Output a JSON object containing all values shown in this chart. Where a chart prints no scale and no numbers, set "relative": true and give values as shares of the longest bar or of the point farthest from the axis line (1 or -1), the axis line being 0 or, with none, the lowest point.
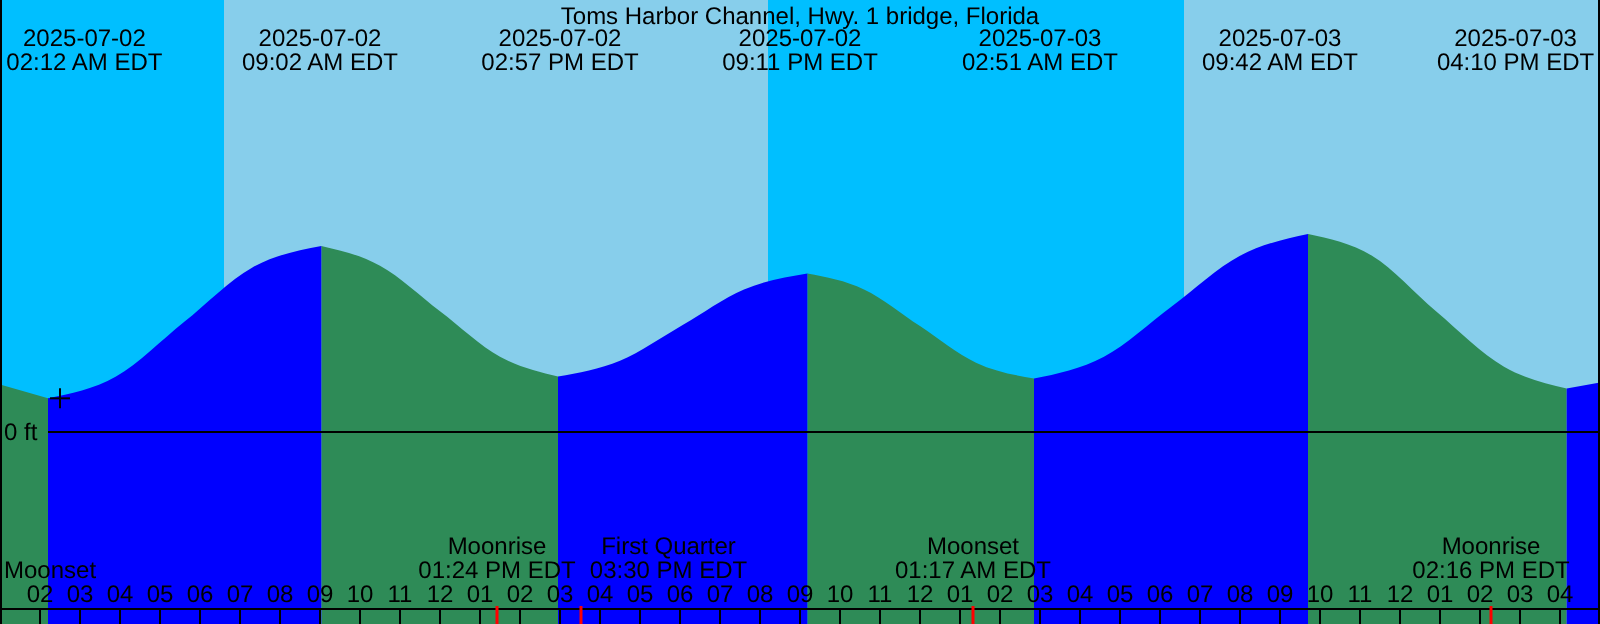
{
  "chart_data": {
    "type": "area",
    "title": "Toms Harbor Channel, Hwy. 1 bridge, Florida",
    "relative": true,
    "xlim": [
      "2025-07-02T01:00",
      "2025-07-03T17:00"
    ],
    "xticks": [
      {
        "value": "2025-07-02T02:00",
        "label": "02"
      },
      {
        "value": "2025-07-02T03:00",
        "label": "03"
      },
      {
        "value": "2025-07-02T04:00",
        "label": "04"
      },
      {
        "value": "2025-07-02T05:00",
        "label": "05"
      },
      {
        "value": "2025-07-02T06:00",
        "label": "06"
      },
      {
        "value": "2025-07-02T07:00",
        "label": "07"
      },
      {
        "value": "2025-07-02T08:00",
        "label": "08"
      },
      {
        "value": "2025-07-02T09:00",
        "label": "09"
      },
      {
        "value": "2025-07-02T10:00",
        "label": "10"
      },
      {
        "value": "2025-07-02T11:00",
        "label": "11"
      },
      {
        "value": "2025-07-02T12:00",
        "label": "12"
      },
      {
        "value": "2025-07-02T13:00",
        "label": "01"
      },
      {
        "value": "2025-07-02T14:00",
        "label": "02"
      },
      {
        "value": "2025-07-02T15:00",
        "label": "03"
      },
      {
        "value": "2025-07-02T16:00",
        "label": "04"
      },
      {
        "value": "2025-07-02T17:00",
        "label": "05"
      },
      {
        "value": "2025-07-02T18:00",
        "label": "06"
      },
      {
        "value": "2025-07-02T19:00",
        "label": "07"
      },
      {
        "value": "2025-07-02T20:00",
        "label": "08"
      },
      {
        "value": "2025-07-02T21:00",
        "label": "09"
      },
      {
        "value": "2025-07-02T22:00",
        "label": "10"
      },
      {
        "value": "2025-07-02T23:00",
        "label": "11"
      },
      {
        "value": "2025-07-03T00:00",
        "label": "12"
      },
      {
        "value": "2025-07-03T01:00",
        "label": "01"
      },
      {
        "value": "2025-07-03T02:00",
        "label": "02"
      },
      {
        "value": "2025-07-03T03:00",
        "label": "03"
      },
      {
        "value": "2025-07-03T04:00",
        "label": "04"
      },
      {
        "value": "2025-07-03T05:00",
        "label": "05"
      },
      {
        "value": "2025-07-03T06:00",
        "label": "06"
      },
      {
        "value": "2025-07-03T07:00",
        "label": "07"
      },
      {
        "value": "2025-07-03T08:00",
        "label": "08"
      },
      {
        "value": "2025-07-03T09:00",
        "label": "09"
      },
      {
        "value": "2025-07-03T10:00",
        "label": "10"
      },
      {
        "value": "2025-07-03T11:00",
        "label": "11"
      },
      {
        "value": "2025-07-03T12:00",
        "label": "12"
      },
      {
        "value": "2025-07-03T13:00",
        "label": "01"
      },
      {
        "value": "2025-07-03T14:00",
        "label": "02"
      },
      {
        "value": "2025-07-03T15:00",
        "label": "03"
      },
      {
        "value": "2025-07-03T16:00",
        "label": "04"
      }
    ],
    "series": [
      {
        "color": "#2e8b57",
        "x": [
          "2025-07-02T01:00",
          "2025-07-02T02:12",
          "2025-07-02T03:54",
          "2025-07-02T09:02",
          "2025-07-02T10:30",
          "2025-07-02T12:00",
          "2025-07-02T13:30",
          "2025-07-02T14:57",
          "2025-07-02T18:00",
          "2025-07-02T21:11",
          "2025-07-02T22:36",
          "2025-07-03T00:00",
          "2025-07-03T01:24",
          "2025-07-03T02:51",
          "2025-07-03T06:00",
          "2025-07-03T09:42",
          "2025-07-03T11:18",
          "2025-07-03T12:54",
          "2025-07-03T14:36",
          "2025-07-03T16:10"
        ],
        "values": [
          0.24,
          0.17,
          null,
          0.94,
          0.84,
          0.61,
          0.38,
          0.28,
          null,
          0.8,
          0.72,
          0.535,
          0.35,
          0.27,
          null,
          1.0,
          0.89,
          0.61,
          0.33,
          0.22
        ]
      },
      {
        "color": "#0000ff",
        "x": [
          "2025-07-02T02:12",
          "2025-07-02T03:54",
          "2025-07-02T05:36",
          "2025-07-02T07:18",
          "2025-07-02T09:02",
          "2025-07-02T12:00",
          "2025-07-02T14:57",
          "2025-07-02T16:30",
          "2025-07-02T18:04",
          "2025-07-02T19:36",
          "2025-07-02T21:11",
          "2025-07-03T00:00",
          "2025-07-03T02:51",
          "2025-07-03T04:36",
          "2025-07-03T06:18",
          "2025-07-03T08:00",
          "2025-07-03T09:42",
          "2025-07-03T13:00",
          "2025-07-03T16:10",
          "2025-07-03T17:00"
        ],
        "values": [
          0.17,
          0.28,
          0.555,
          0.83,
          0.94,
          null,
          0.28,
          0.36,
          0.54,
          0.72,
          0.8,
          null,
          0.27,
          0.38,
          0.635,
          0.89,
          1.0,
          null,
          0.22,
          0.25
        ]
      }
    ],
    "bands": [
      {
        "axis": "x",
        "from": "2025-07-02T01:00",
        "to": "2025-07-02T06:36",
        "color": "#00bfff"
      },
      {
        "axis": "x",
        "from": "2025-07-02T06:36",
        "to": "2025-07-02T20:12",
        "color": "#87ceeb"
      },
      {
        "axis": "x",
        "from": "2025-07-02T20:12",
        "to": "2025-07-03T06:36",
        "color": "#00bfff"
      },
      {
        "axis": "x",
        "from": "2025-07-03T06:36",
        "to": "2025-07-03T17:00",
        "color": "#87ceeb"
      }
    ],
    "ref_lines": [
      {
        "axis": "y",
        "value": 0,
        "label": "0 ft",
        "color": "#000000"
      },
      {
        "axis": "x",
        "value": "2025-07-02T13:24",
        "label": "Moonrise\n01:24 PM EDT",
        "color": "#ff0000"
      },
      {
        "axis": "x",
        "value": "2025-07-02T15:30",
        "label": "First Quarter\n03:30 PM EDT",
        "color": "#ff0000"
      },
      {
        "axis": "x",
        "value": "2025-07-03T01:17",
        "label": "Moonset\n01:17 AM EDT",
        "color": "#ff0000"
      },
      {
        "axis": "x",
        "value": "2025-07-03T14:16",
        "label": "Moonrise\n02:16 PM EDT",
        "color": "#ff0000"
      }
    ],
    "annotations": [
      "2025-07-02\n02:12 AM EDT",
      "2025-07-02\n09:02 AM EDT",
      "2025-07-02\n02:57 PM EDT",
      "2025-07-02\n09:11 PM EDT",
      "2025-07-03\n02:51 AM EDT",
      "2025-07-03\n09:42 AM EDT",
      "2025-07-03\n04:10 PM EDT",
      "Moonset"
    ]
  }
}
